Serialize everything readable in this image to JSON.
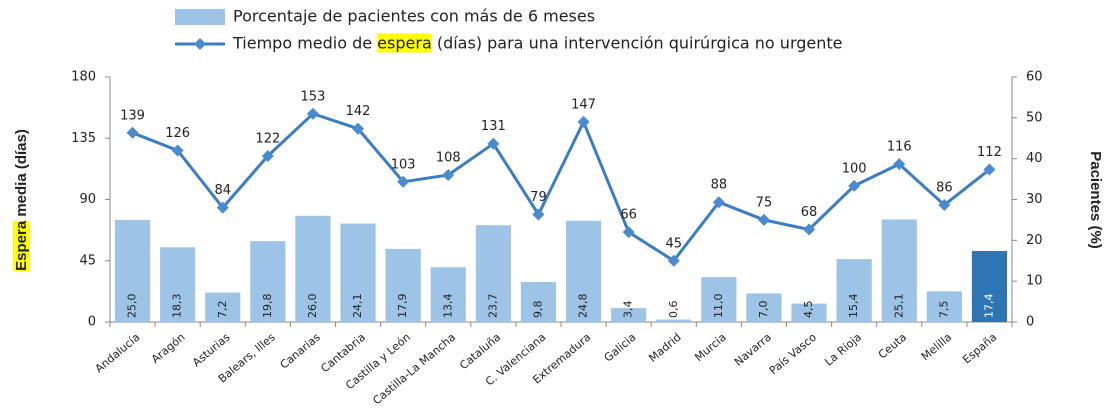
{
  "chart_data": {
    "type": "bar",
    "categories": [
      "Andalucía",
      "Aragón",
      "Asturias",
      "Balears, Illes",
      "Canarias",
      "Cantabria",
      "Castilla y León",
      "Castilla-La Mancha",
      "Cataluña",
      "C. Valenciana",
      "Extremadura",
      "Galicia",
      "Madrid",
      "Murcia",
      "Navarra",
      "País Vasco",
      "La Rioja",
      "Ceuta",
      "Melilla",
      "España"
    ],
    "y_label": "Espera media (días)",
    "y2_label": "Pacientes (%)",
    "ylim": [
      0,
      180
    ],
    "yticks": [
      0,
      45,
      90,
      135,
      180
    ],
    "y2lim": [
      0,
      60
    ],
    "y2ticks": [
      0,
      10,
      20,
      30,
      40,
      50,
      60
    ],
    "highlight_color": "#ffff00",
    "series": [
      {
        "name": "Porcentaje de pacientes con más de 6 meses",
        "type": "bar",
        "axis": "y2",
        "color": "#9dc3e6",
        "colors": [
          "#9dc3e6",
          "#9dc3e6",
          "#9dc3e6",
          "#9dc3e6",
          "#9dc3e6",
          "#9dc3e6",
          "#9dc3e6",
          "#9dc3e6",
          "#9dc3e6",
          "#9dc3e6",
          "#9dc3e6",
          "#9dc3e6",
          "#9dc3e6",
          "#9dc3e6",
          "#9dc3e6",
          "#9dc3e6",
          "#9dc3e6",
          "#9dc3e6",
          "#9dc3e6",
          "#2e75b6"
        ],
        "values": [
          25.0,
          18.3,
          7.2,
          19.8,
          26.0,
          24.1,
          17.9,
          13.4,
          23.7,
          9.8,
          24.8,
          3.4,
          0.6,
          11.0,
          7.0,
          4.5,
          15.4,
          25.1,
          7.5,
          17.4
        ],
        "value_labels": [
          "25,0",
          "18,3",
          "7,2",
          "19,8",
          "26,0",
          "24,1",
          "17,9",
          "13,4",
          "23,7",
          "9,8",
          "24,8",
          "3,4",
          "0,6",
          "11,0",
          "7,0",
          "4,5",
          "15,4",
          "25,1",
          "7,5",
          "17,4"
        ]
      },
      {
        "name": "Tiempo medio de espera (días) para una intervención quirúrgica no urgente",
        "type": "line",
        "color": "#3b7dc4",
        "values": [
          139,
          126,
          84,
          122,
          153,
          142,
          103,
          108,
          131,
          79,
          147,
          66,
          45,
          88,
          75,
          68,
          100,
          116,
          86,
          112
        ]
      }
    ]
  }
}
